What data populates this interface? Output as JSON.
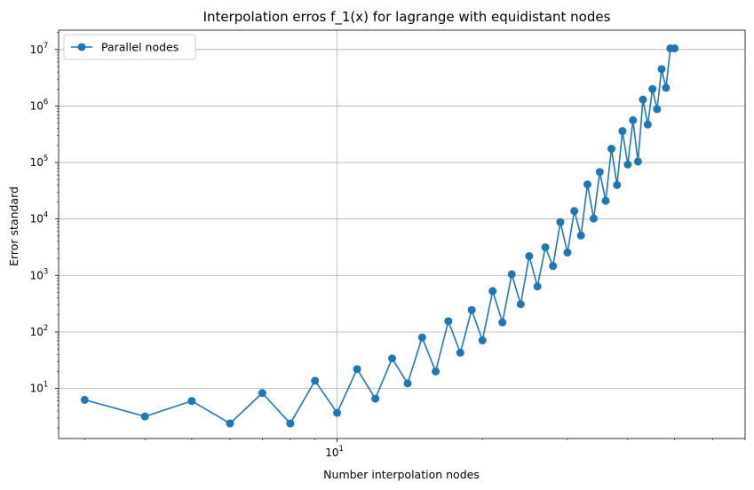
{
  "chart_data": {
    "type": "line",
    "title": "Interpolation erros f_1(x) for lagrange with equidistant nodes",
    "xlabel": "Number interpolation nodes",
    "ylabel": "Error standard",
    "xscale": "log",
    "yscale": "log",
    "xlim": [
      2.65,
      70
    ],
    "ylim": [
      1.3,
      22000000
    ],
    "grid": true,
    "legend_position": "top-left",
    "x_ticks": [
      {
        "value": 10,
        "base": "10",
        "exp": "1"
      }
    ],
    "y_ticks": [
      {
        "value": 10,
        "base": "10",
        "exp": "1"
      },
      {
        "value": 100,
        "base": "10",
        "exp": "2"
      },
      {
        "value": 1000,
        "base": "10",
        "exp": "3"
      },
      {
        "value": 10000,
        "base": "10",
        "exp": "4"
      },
      {
        "value": 100000,
        "base": "10",
        "exp": "5"
      },
      {
        "value": 1000000,
        "base": "10",
        "exp": "6"
      },
      {
        "value": 10000000,
        "base": "10",
        "exp": "7"
      }
    ],
    "series": [
      {
        "name": "Parallel nodes",
        "color": "#1f77b4",
        "x": [
          3,
          4,
          5,
          6,
          7,
          8,
          9,
          10,
          11,
          12,
          13,
          14,
          15,
          16,
          17,
          18,
          19,
          20,
          21,
          22,
          23,
          24,
          25,
          26,
          27,
          28,
          29,
          30,
          31,
          32,
          33,
          34,
          35,
          36,
          37,
          38,
          39,
          40,
          41,
          42,
          43,
          44,
          45,
          46,
          47,
          48,
          49,
          50
        ],
        "y": [
          6.3,
          3.2,
          6.0,
          2.4,
          8.3,
          2.4,
          13.7,
          3.7,
          22,
          6.6,
          34,
          12.3,
          80,
          20,
          155,
          43,
          245,
          71,
          530,
          148,
          1050,
          310,
          2200,
          640,
          3150,
          1470,
          8800,
          2550,
          13800,
          5100,
          41000,
          10200,
          68000,
          21000,
          175000,
          40000,
          360000,
          92000,
          560000,
          104000,
          1300000,
          470000,
          2000000,
          880000,
          4500000,
          2100000,
          10500000,
          10500000
        ]
      }
    ]
  }
}
